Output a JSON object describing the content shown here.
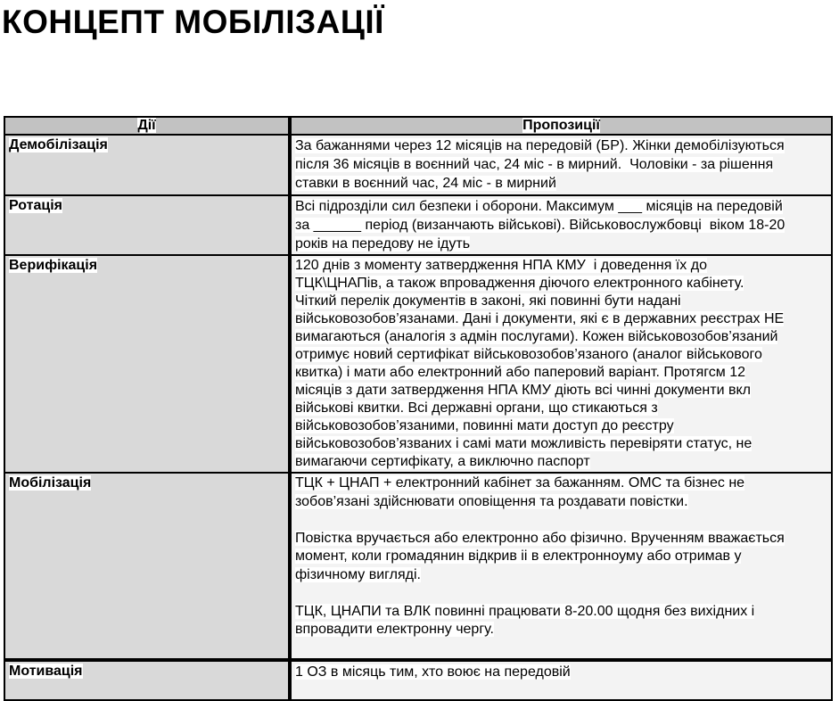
{
  "title": "КОНЦЕПТ МОБІЛІЗАЦІЇ",
  "table": {
    "headers": {
      "actions": "Дії",
      "proposals": "Пропозиції"
    },
    "rows": [
      {
        "action": "Демобілізація",
        "proposal": "За бажаннями через 12 місяців на передовій (БР). Жінки демобілізуються\nпісля 36 місяців в воєнний час, 24 міс - в мирний.  Чоловіки - за рішення\nставки в воєнний час, 24 міс - в мирний"
      },
      {
        "action": "Ротація",
        "proposal": "Всі підрозділи сил безпеки і оборони. Максимум ___ місяців на передовій\nза ______ період (визанчають військові). Військовослужбовці  віком 18-20\nроків на передову не ідуть"
      },
      {
        "action": "Верифікація",
        "proposal": "120 днів з моменту затвердження НПА КМУ  і доведення їх до\nТЦК\\ЦНАПів, а також впровадження діючого електронного кабінету.\nЧіткий перелік документів в законі, які повинні бути надані\nвійськовозобов’язанами. Дані і документи, які є в державних реєстрах НЕ\nвимагаються (аналогія з адмін послугами). Кожен військовозобов’язаний\nотримує новий сертифікат військовозобов’язаного (аналог військового\nквитка) і мати або електронний або паперовий варіант. Протягсм 12\nмісяців з дати затвердження НПА КМУ діють всі чинні документи вкл\nвійськові квитки. Всі державні органи, що стикаються з\nвійськовозобов’язаними, повинні мати доступ до реєстру\nвійськовозобов’язваних і самі мати можливість перевіряти статус, не\nвимагаючи сертифікату, а виключно паспорт"
      },
      {
        "action": "Мобілізація",
        "proposal": "ТЦК + ЦНАП + електронний кабінет за бажанням. ОМС та бізнес не\nзобов’язані здійснювати оповіщення та роздавати повістки.\n\nПовістка вручається або електронно або фізично. Врученням вважається\nмомент, коли громадянин відкрив іі в електронноуму або отримав у\nфізичному вигляді.\n\nТЦК, ЦНАПИ та ВЛК повинні працювати 8-20.00 щодня без вихідних і\nвпровадити електронну чергу."
      },
      {
        "action": "Мотивація",
        "proposal": "1 ОЗ в місяць тим, хто воює на передовій",
        "partially_visible": true
      }
    ]
  },
  "colors": {
    "header_bg": "#c2c2c2",
    "action_cell_bg": "#d9d9d9",
    "proposal_cell_bg": "#f3f3f3",
    "text_highlight": "#ffffff",
    "border": "#000000"
  }
}
